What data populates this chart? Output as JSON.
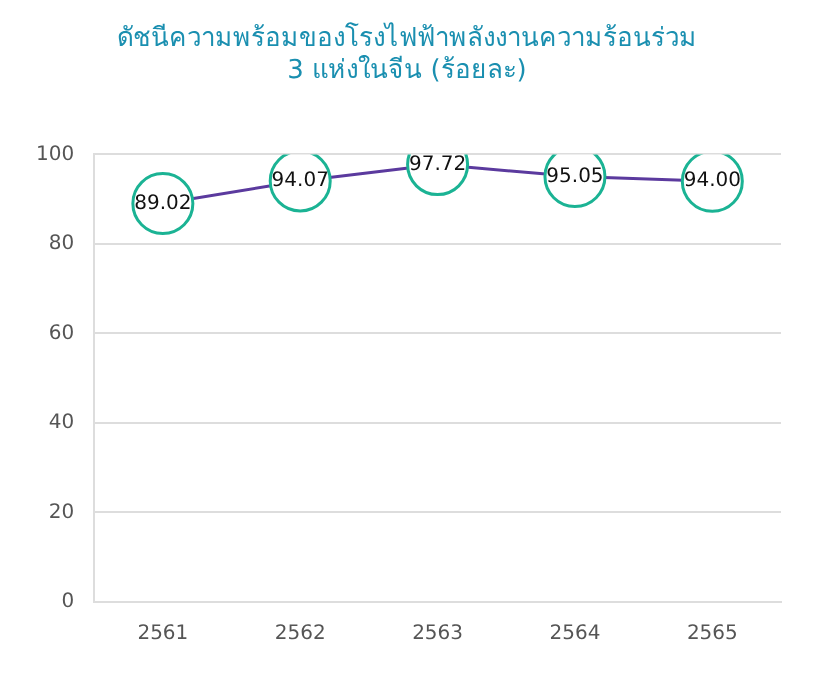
{
  "chart_data": {
    "type": "line",
    "title": "ดัชนีความพร้อมของโรงไฟฟ้าพลังงานความร้อนร่วม\n3 แห่งในจีน (ร้อยละ)",
    "categories": [
      "2561",
      "2562",
      "2563",
      "2564",
      "2565"
    ],
    "series": [
      {
        "color": "#5b3a9e",
        "values": [
          89.02,
          94.07,
          97.72,
          95.05,
          94.0
        ]
      }
    ],
    "value_labels": [
      "89.02",
      "94.07",
      "97.72",
      "95.05",
      "94.00"
    ],
    "ylim": [
      0,
      100
    ],
    "yticks": [
      0,
      20,
      40,
      60,
      80,
      100
    ],
    "grid": "y",
    "legend": false,
    "marker": "circle",
    "line_style": "solid"
  }
}
